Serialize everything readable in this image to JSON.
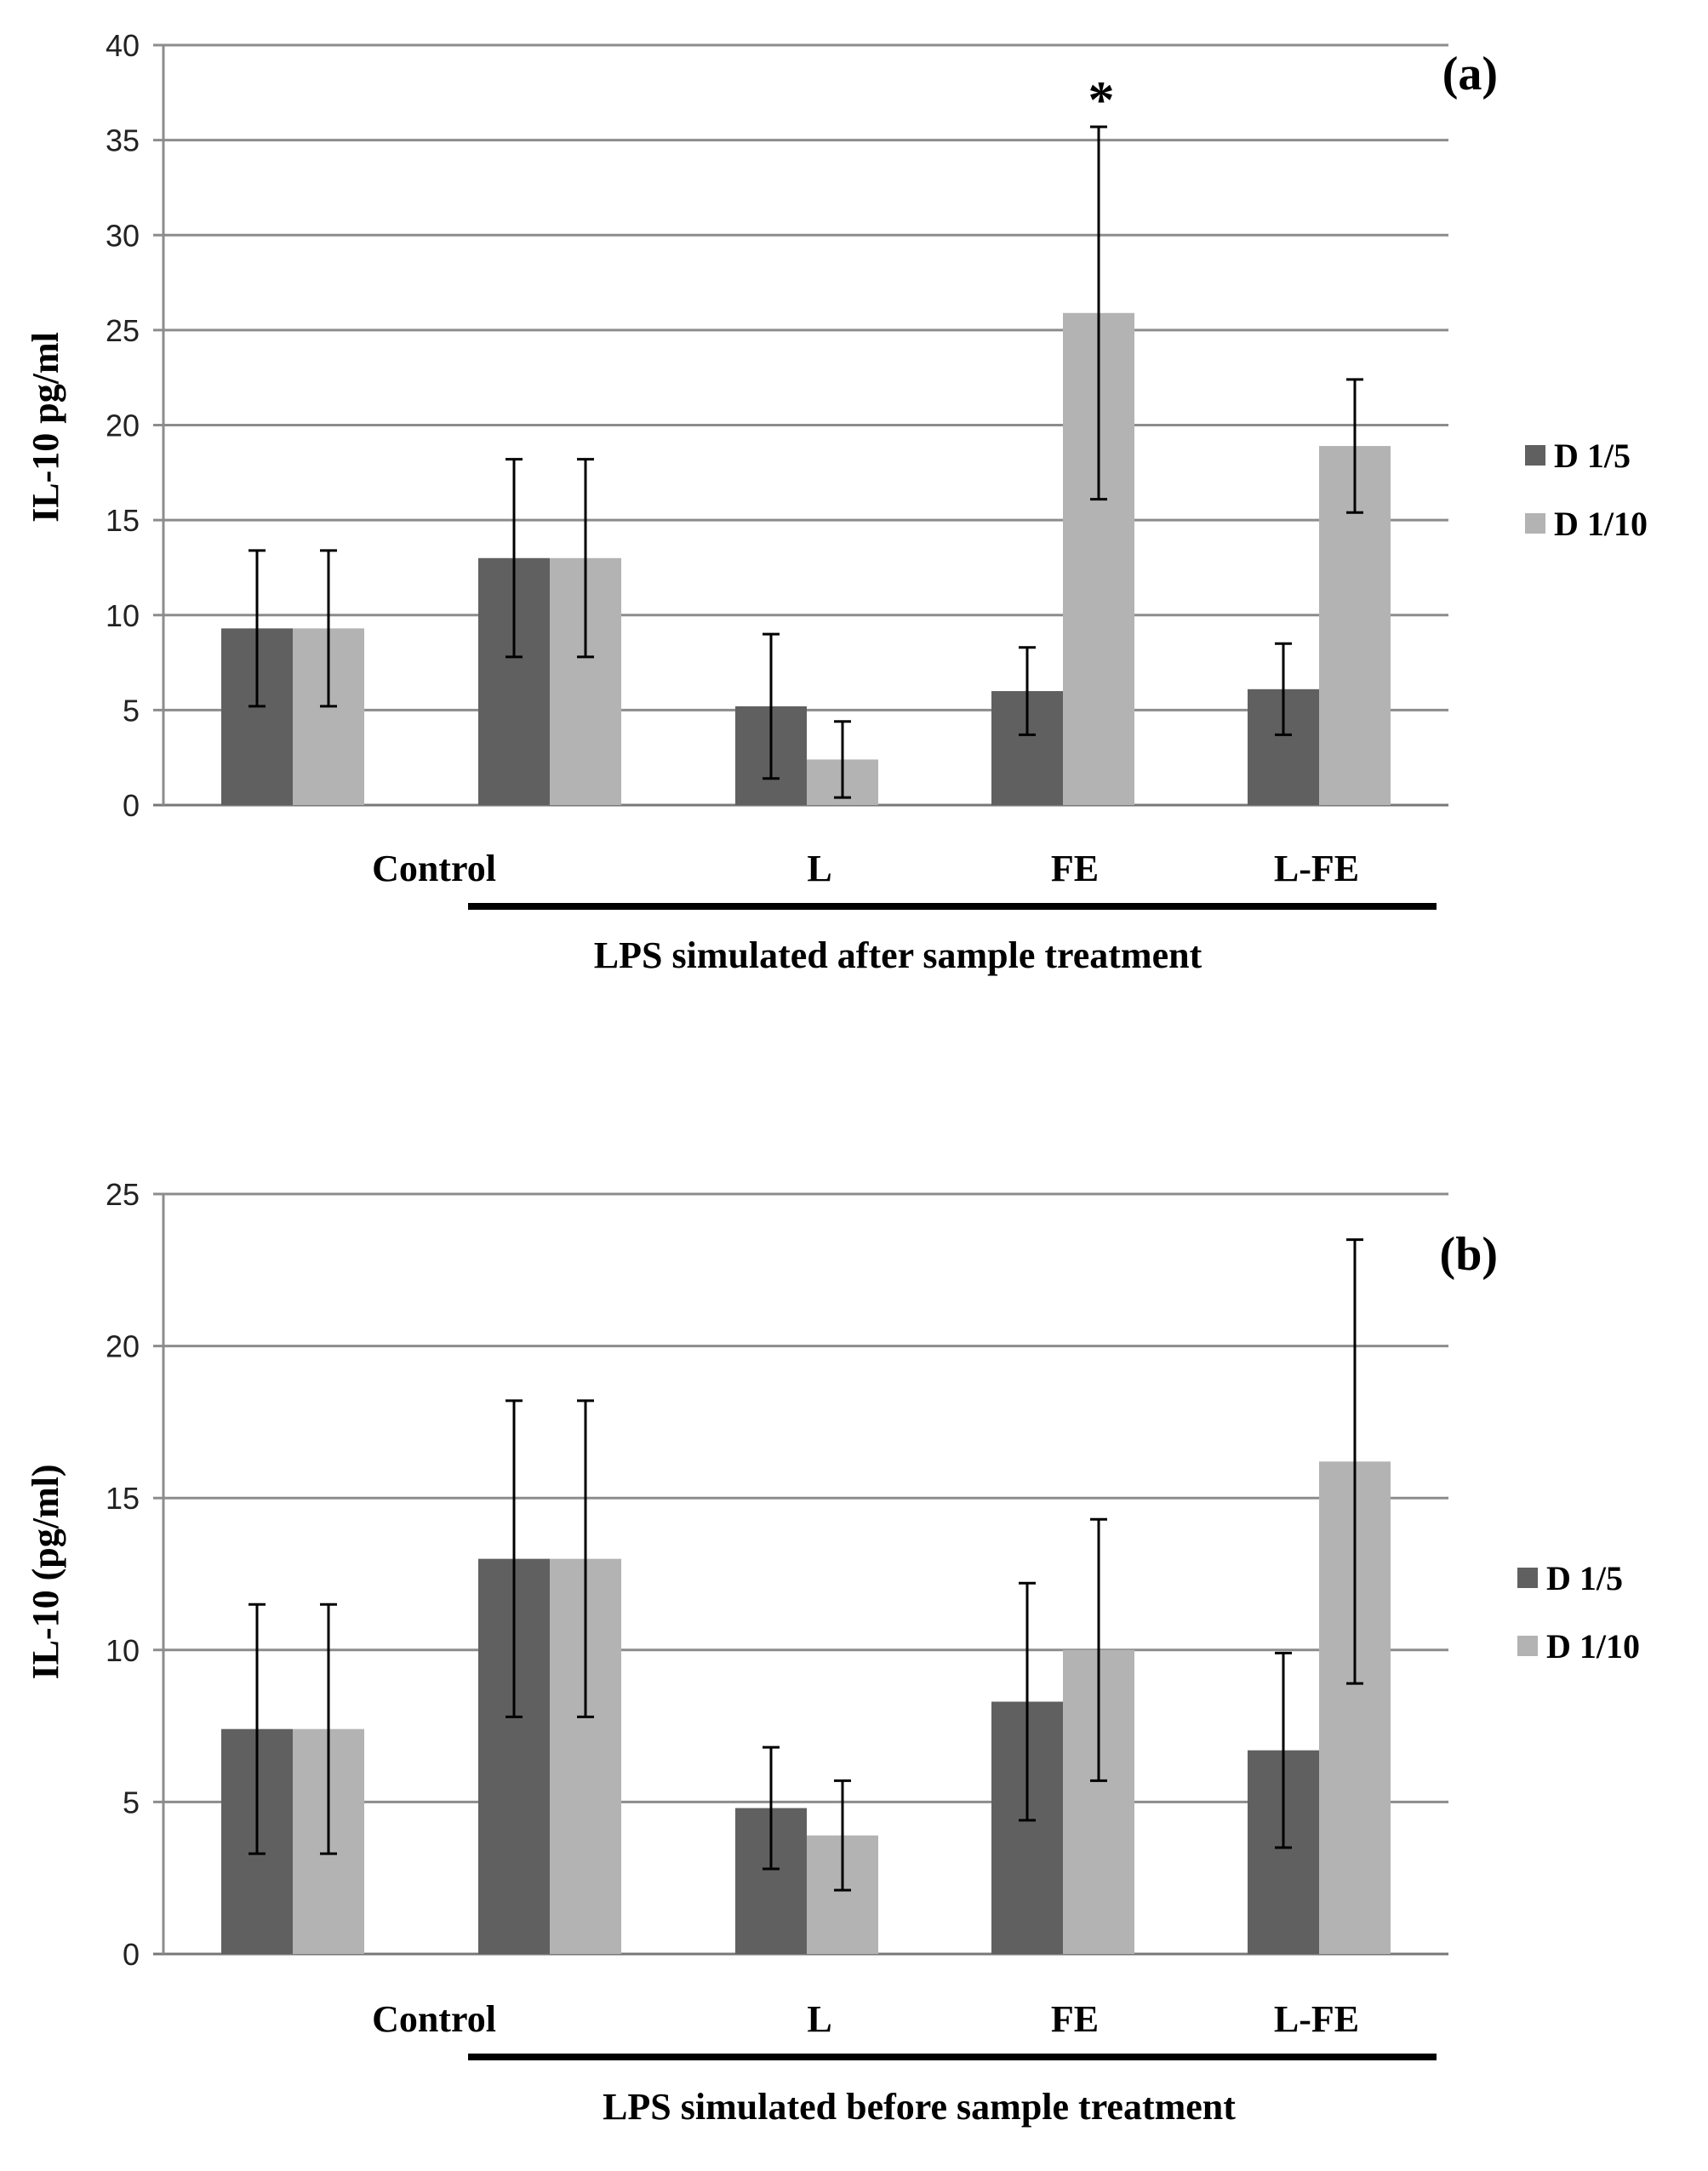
{
  "chart_data": [
    {
      "type": "bar",
      "panel_label": "(a)",
      "ylabel": "IL-10 pg/ml",
      "ylim": [
        0,
        40
      ],
      "yticks": [
        0,
        5,
        10,
        15,
        20,
        25,
        30,
        35,
        40
      ],
      "ytick_labels": [
        "0",
        "5",
        "10",
        "15",
        "20",
        "25",
        "30",
        "35",
        "40"
      ],
      "grid": true,
      "legend_position": "right",
      "categories": [
        "",
        "Control",
        "L",
        "FE",
        "L-FE"
      ],
      "category_labels": [
        "Control",
        "L",
        "FE",
        "L-FE"
      ],
      "series": [
        {
          "name": "D 1/5",
          "color": "#606060",
          "values": [
            9.3,
            13.0,
            5.2,
            6.0,
            6.1
          ],
          "errors": [
            4.1,
            5.2,
            3.8,
            2.3,
            2.4
          ]
        },
        {
          "name": "D 1/10",
          "color": "#b3b3b3",
          "values": [
            9.3,
            13.0,
            2.4,
            25.9,
            18.9
          ],
          "errors": [
            4.1,
            5.2,
            2.0,
            9.8,
            3.5
          ]
        }
      ],
      "annotations": [
        {
          "text": "*",
          "category_index": 3,
          "series_index": 1
        }
      ],
      "bracket_label": "LPS simulated after sample treatment"
    },
    {
      "type": "bar",
      "panel_label": "(b)",
      "ylabel": "IL-10 (pg/ml)",
      "ylim": [
        0,
        25
      ],
      "yticks": [
        0,
        5,
        10,
        15,
        20,
        25
      ],
      "ytick_labels": [
        "0",
        "5",
        "10",
        "15",
        "20",
        "25"
      ],
      "grid": true,
      "legend_position": "right",
      "categories": [
        "",
        "Control",
        "L",
        "FE",
        "L-FE"
      ],
      "category_labels": [
        "Control",
        "L",
        "FE",
        "L-FE"
      ],
      "series": [
        {
          "name": "D 1/5",
          "color": "#606060",
          "values": [
            7.4,
            13.0,
            4.8,
            8.3,
            6.7
          ],
          "errors": [
            4.1,
            5.2,
            2.0,
            3.9,
            3.2
          ]
        },
        {
          "name": "D 1/10",
          "color": "#b3b3b3",
          "values": [
            7.4,
            13.0,
            3.9,
            10.0,
            16.2
          ],
          "errors": [
            4.1,
            5.2,
            1.8,
            4.3,
            7.3
          ]
        }
      ],
      "annotations": [],
      "bracket_label": "LPS simulated before sample treatment"
    }
  ]
}
